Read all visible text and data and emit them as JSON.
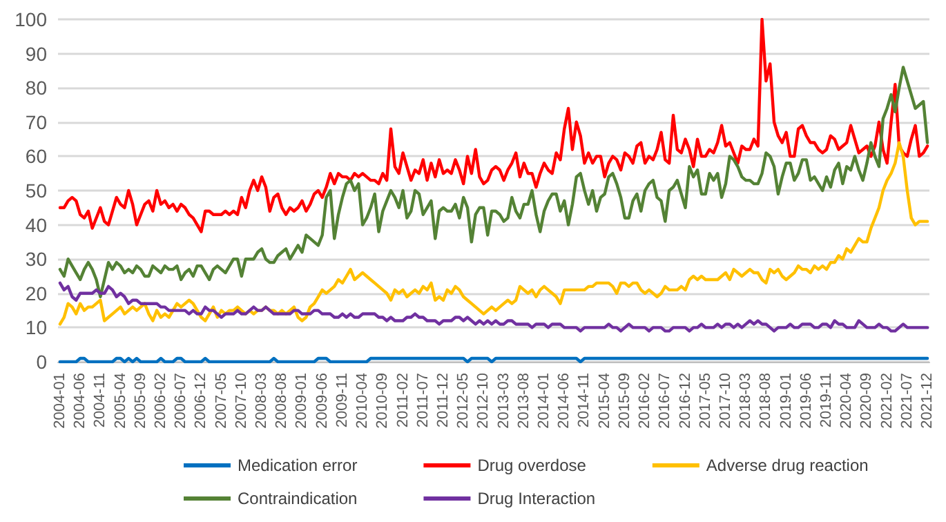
{
  "chart_data": {
    "type": "line",
    "categories": [
      "2004-01",
      null,
      null,
      null,
      null,
      "2004-06",
      null,
      null,
      null,
      null,
      "2004-11",
      null,
      null,
      null,
      null,
      "2005-04",
      null,
      null,
      null,
      null,
      "2005-09",
      null,
      null,
      null,
      null,
      "2006-02",
      null,
      null,
      null,
      null,
      "2006-07",
      null,
      null,
      null,
      null,
      "2006-12",
      null,
      null,
      null,
      null,
      "2007-05",
      null,
      null,
      null,
      null,
      "2007-10",
      null,
      null,
      null,
      null,
      "2008-03",
      null,
      null,
      null,
      null,
      "2008-08",
      null,
      null,
      null,
      null,
      "2009-01",
      null,
      null,
      null,
      null,
      "2009-06",
      null,
      null,
      null,
      null,
      "2009-11",
      null,
      null,
      null,
      null,
      "2010-04",
      null,
      null,
      null,
      null,
      "2010-09",
      null,
      null,
      null,
      null,
      "2011-02",
      null,
      null,
      null,
      null,
      "2011-07",
      null,
      null,
      null,
      null,
      "2011-12",
      null,
      null,
      null,
      null,
      "2012-05",
      null,
      null,
      null,
      null,
      "2012-10",
      null,
      null,
      null,
      null,
      "2013-03",
      null,
      null,
      null,
      null,
      "2013-08",
      null,
      null,
      null,
      null,
      "2014-01",
      null,
      null,
      null,
      null,
      "2014-06",
      null,
      null,
      null,
      null,
      "2014-11",
      null,
      null,
      null,
      null,
      "2015-04",
      null,
      null,
      null,
      null,
      "2015-09",
      null,
      null,
      null,
      null,
      "2016-02",
      null,
      null,
      null,
      null,
      "2016-07",
      null,
      null,
      null,
      null,
      "2016-12",
      null,
      null,
      null,
      null,
      "2017-05",
      null,
      null,
      null,
      null,
      "2017-10",
      null,
      null,
      null,
      null,
      "2018-03",
      null,
      null,
      null,
      null,
      "2018-08",
      null,
      null,
      null,
      null,
      "2019-01",
      null,
      null,
      null,
      null,
      "2019-06",
      null,
      null,
      null,
      null,
      "2019-11",
      null,
      null,
      null,
      null,
      "2020-04",
      null,
      null,
      null,
      null,
      "2020-09",
      null,
      null,
      null,
      null,
      "2021-02",
      null,
      null,
      null,
      null,
      "2021-07",
      null,
      null,
      null,
      null,
      "2021-12"
    ],
    "series": [
      {
        "name": "Medication error",
        "color": "#0070c0",
        "values": [
          0,
          0,
          0,
          0,
          0,
          1,
          1,
          0,
          0,
          0,
          0,
          0,
          0,
          0,
          1,
          1,
          0,
          1,
          0,
          1,
          0,
          0,
          0,
          0,
          0,
          1,
          0,
          0,
          0,
          1,
          1,
          0,
          0,
          0,
          0,
          0,
          1,
          0,
          0,
          0,
          0,
          0,
          0,
          0,
          0,
          0,
          0,
          0,
          0,
          0,
          0,
          0,
          0,
          1,
          0,
          0,
          0,
          0,
          0,
          0,
          0,
          0,
          0,
          0,
          1,
          1,
          1,
          0,
          0,
          0,
          0,
          0,
          0,
          0,
          0,
          0,
          0,
          1,
          1,
          1,
          1,
          1,
          1,
          1,
          1,
          1,
          1,
          1,
          1,
          1,
          1,
          1,
          1,
          1,
          1,
          1,
          1,
          1,
          1,
          1,
          1,
          0,
          1,
          1,
          1,
          1,
          1,
          0,
          1,
          1,
          1,
          1,
          1,
          1,
          1,
          1,
          1,
          1,
          1,
          1,
          1,
          1,
          1,
          1,
          1,
          1,
          1,
          1,
          1,
          0,
          1,
          1,
          1,
          1,
          1,
          1,
          1,
          1,
          1,
          1,
          1,
          1,
          1,
          1,
          1,
          1,
          1,
          1,
          1,
          1,
          1,
          1,
          1,
          1,
          1,
          1,
          1,
          1,
          1,
          1,
          1,
          1,
          1,
          1,
          1,
          1,
          1,
          1,
          1,
          1,
          1,
          1,
          1,
          1,
          1,
          1,
          1,
          1,
          1,
          1,
          1,
          1,
          1,
          1,
          1,
          1,
          1,
          1,
          1,
          1,
          1,
          1,
          1,
          1,
          1,
          1,
          1,
          1,
          1,
          1,
          1,
          1,
          1,
          1,
          1,
          1,
          1,
          1,
          1,
          1,
          1,
          1,
          1,
          1,
          1,
          1
        ]
      },
      {
        "name": "Drug overdose",
        "color": "#ff0000",
        "values": [
          45,
          45,
          47,
          48,
          47,
          43,
          42,
          44,
          39,
          42,
          45,
          41,
          40,
          44,
          48,
          46,
          45,
          50,
          46,
          40,
          43,
          46,
          47,
          44,
          50,
          46,
          47,
          45,
          46,
          44,
          46,
          45,
          43,
          42,
          40,
          38,
          44,
          44,
          43,
          43,
          43,
          44,
          43,
          44,
          43,
          48,
          45,
          50,
          53,
          50,
          54,
          51,
          44,
          48,
          49,
          45,
          43,
          45,
          44,
          45,
          47,
          44,
          46,
          49,
          50,
          48,
          51,
          55,
          52,
          55,
          54,
          54,
          53,
          55,
          54,
          55,
          54,
          53,
          53,
          52,
          55,
          53,
          68,
          57,
          55,
          61,
          57,
          53,
          56,
          55,
          59,
          53,
          58,
          54,
          59,
          55,
          56,
          55,
          59,
          56,
          52,
          60,
          55,
          62,
          54,
          52,
          53,
          56,
          57,
          56,
          53,
          56,
          58,
          61,
          54,
          58,
          55,
          55,
          51,
          55,
          58,
          56,
          55,
          61,
          59,
          68,
          74,
          62,
          70,
          66,
          58,
          61,
          58,
          60,
          60,
          54,
          58,
          60,
          59,
          56,
          61,
          60,
          58,
          63,
          64,
          58,
          60,
          59,
          62,
          67,
          59,
          58,
          72,
          62,
          61,
          65,
          62,
          57,
          65,
          60,
          60,
          62,
          61,
          64,
          69,
          63,
          64,
          61,
          58,
          63,
          62,
          62,
          65,
          63,
          100,
          82,
          87,
          70,
          66,
          64,
          67,
          60,
          60,
          68,
          69,
          66,
          64,
          64,
          62,
          61,
          62,
          66,
          65,
          62,
          63,
          64,
          69,
          65,
          61,
          62,
          63,
          60,
          63,
          70,
          62,
          58,
          70,
          81,
          63,
          61,
          60,
          65,
          69,
          60,
          61,
          63
        ]
      },
      {
        "name": "Adverse drug reaction",
        "color": "#ffc000",
        "values": [
          11,
          13,
          17,
          16,
          14,
          17,
          15,
          16,
          16,
          17,
          18,
          12,
          13,
          14,
          15,
          16,
          14,
          15,
          16,
          15,
          16,
          17,
          14,
          12,
          15,
          13,
          14,
          13,
          15,
          17,
          16,
          17,
          18,
          17,
          15,
          13,
          12,
          14,
          16,
          13,
          15,
          14,
          15,
          15,
          16,
          15,
          14,
          15,
          14,
          15,
          15,
          16,
          15,
          15,
          14,
          15,
          14,
          15,
          16,
          13,
          12,
          13,
          16,
          17,
          19,
          21,
          20,
          21,
          22,
          24,
          23,
          25,
          27,
          24,
          25,
          26,
          25,
          24,
          23,
          22,
          21,
          20,
          18,
          21,
          20,
          21,
          19,
          20,
          21,
          20,
          22,
          21,
          23,
          18,
          19,
          18,
          21,
          20,
          22,
          21,
          19,
          18,
          17,
          16,
          15,
          14,
          15,
          16,
          15,
          16,
          17,
          18,
          17,
          18,
          22,
          21,
          20,
          21,
          19,
          21,
          22,
          21,
          20,
          19,
          17,
          21,
          21,
          21,
          21,
          21,
          21,
          22,
          22,
          23,
          23,
          23,
          23,
          22,
          20,
          23,
          23,
          22,
          23,
          23,
          21,
          20,
          21,
          20,
          19,
          20,
          22,
          21,
          21,
          21,
          22,
          21,
          24,
          25,
          24,
          25,
          24,
          24,
          24,
          24,
          25,
          26,
          24,
          27,
          26,
          25,
          26,
          27,
          26,
          26,
          24,
          23,
          27,
          26,
          27,
          25,
          24,
          25,
          26,
          28,
          27,
          27,
          26,
          28,
          27,
          28,
          27,
          29,
          29,
          31,
          30,
          33,
          32,
          34,
          36,
          35,
          35,
          39,
          42,
          45,
          50,
          53,
          55,
          58,
          64,
          60,
          50,
          42,
          40,
          41,
          41,
          41
        ]
      },
      {
        "name": "Contraindication",
        "color": "#548235",
        "values": [
          27,
          25,
          30,
          28,
          26,
          24,
          27,
          29,
          27,
          24,
          19,
          24,
          29,
          27,
          29,
          28,
          26,
          27,
          26,
          28,
          27,
          25,
          25,
          28,
          27,
          26,
          28,
          27,
          27,
          28,
          24,
          26,
          27,
          25,
          28,
          28,
          26,
          24,
          27,
          28,
          27,
          26,
          28,
          30,
          30,
          25,
          30,
          30,
          30,
          32,
          33,
          30,
          29,
          29,
          31,
          32,
          33,
          30,
          32,
          34,
          32,
          37,
          36,
          35,
          34,
          37,
          48,
          50,
          36,
          43,
          48,
          52,
          53,
          50,
          52,
          40,
          42,
          45,
          49,
          38,
          44,
          47,
          50,
          48,
          45,
          50,
          42,
          44,
          50,
          49,
          43,
          45,
          47,
          36,
          44,
          45,
          44,
          44,
          46,
          42,
          48,
          45,
          35,
          43,
          45,
          45,
          37,
          44,
          44,
          43,
          41,
          42,
          48,
          44,
          42,
          46,
          46,
          50,
          43,
          38,
          44,
          47,
          49,
          49,
          44,
          47,
          40,
          46,
          54,
          55,
          50,
          46,
          50,
          44,
          48,
          49,
          54,
          55,
          52,
          48,
          42,
          42,
          47,
          49,
          44,
          50,
          52,
          53,
          48,
          47,
          41,
          50,
          51,
          53,
          49,
          45,
          57,
          54,
          56,
          49,
          49,
          55,
          53,
          55,
          48,
          52,
          60,
          59,
          57,
          54,
          53,
          53,
          52,
          52,
          55,
          61,
          60,
          57,
          49,
          54,
          58,
          58,
          53,
          55,
          59,
          59,
          53,
          54,
          52,
          50,
          54,
          51,
          56,
          58,
          52,
          57,
          56,
          60,
          56,
          53,
          58,
          64,
          60,
          57,
          71,
          74,
          78,
          73,
          80,
          86,
          82,
          78,
          74,
          75,
          76,
          64
        ]
      },
      {
        "name": "Drug Interaction",
        "color": "#7030a0",
        "values": [
          23,
          21,
          22,
          19,
          18,
          20,
          20,
          20,
          20,
          21,
          20,
          20,
          22,
          21,
          19,
          20,
          19,
          17,
          18,
          18,
          17,
          17,
          17,
          17,
          17,
          16,
          16,
          15,
          15,
          15,
          15,
          15,
          14,
          15,
          14,
          14,
          16,
          15,
          15,
          14,
          13,
          14,
          14,
          14,
          15,
          14,
          14,
          15,
          16,
          15,
          15,
          16,
          15,
          14,
          14,
          14,
          14,
          14,
          15,
          15,
          14,
          14,
          14,
          15,
          15,
          14,
          14,
          14,
          13,
          13,
          14,
          13,
          14,
          13,
          13,
          14,
          14,
          14,
          14,
          13,
          13,
          12,
          13,
          12,
          12,
          12,
          13,
          13,
          14,
          13,
          13,
          12,
          12,
          12,
          11,
          12,
          12,
          12,
          13,
          13,
          12,
          13,
          12,
          11,
          12,
          11,
          12,
          11,
          12,
          11,
          11,
          12,
          12,
          11,
          11,
          11,
          11,
          10,
          11,
          11,
          11,
          10,
          11,
          11,
          11,
          10,
          10,
          10,
          10,
          9,
          10,
          10,
          10,
          10,
          10,
          10,
          11,
          10,
          10,
          9,
          10,
          11,
          10,
          10,
          10,
          10,
          9,
          10,
          10,
          10,
          9,
          9,
          10,
          10,
          10,
          10,
          9,
          10,
          10,
          11,
          10,
          10,
          10,
          11,
          10,
          11,
          11,
          10,
          11,
          10,
          11,
          12,
          11,
          12,
          11,
          11,
          10,
          9,
          10,
          10,
          10,
          11,
          10,
          10,
          11,
          11,
          11,
          10,
          10,
          11,
          11,
          10,
          12,
          11,
          11,
          10,
          10,
          10,
          12,
          11,
          10,
          10,
          10,
          11,
          10,
          10,
          9,
          9,
          10,
          11,
          10,
          10,
          10,
          10,
          10,
          10
        ]
      }
    ],
    "ylim": [
      0,
      100
    ],
    "yticks": [
      0,
      10,
      20,
      30,
      40,
      50,
      60,
      70,
      80,
      90,
      100
    ],
    "grid": "y",
    "legend": "bottom",
    "marker": "none"
  }
}
